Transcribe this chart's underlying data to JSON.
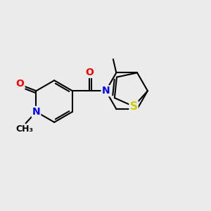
{
  "bg_color": "#ebebeb",
  "bond_color": "#000000",
  "atom_colors": {
    "O": "#ff0000",
    "N": "#0000ff",
    "S": "#cccc00",
    "C": "#000000"
  },
  "bond_width": 1.5,
  "font_size": 10,
  "methyl_font_size": 9
}
